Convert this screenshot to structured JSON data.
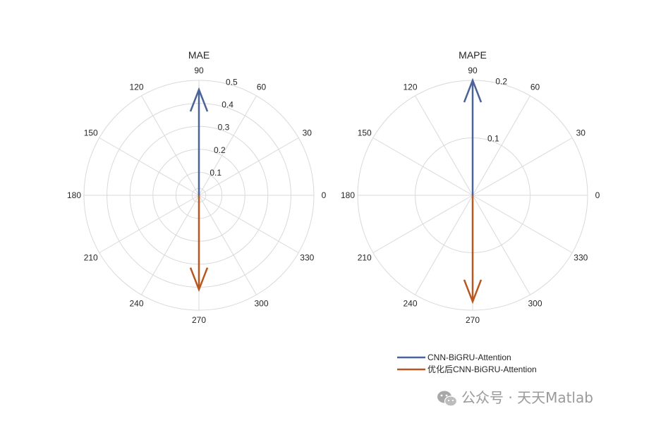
{
  "chart_data": [
    {
      "type": "polar",
      "title": "MAE",
      "angle_ticks": [
        "0",
        "30",
        "60",
        "90",
        "120",
        "150",
        "180",
        "210",
        "240",
        "270",
        "300",
        "330"
      ],
      "r_ticks": [
        "0.1",
        "0.2",
        "0.3",
        "0.4",
        "0.5"
      ],
      "rlim": [
        0,
        0.5
      ],
      "grid": true,
      "series": [
        {
          "name": "CNN-BiGRU-Attention",
          "angle_deg": 90,
          "r": 0.46,
          "color": "#4a6399"
        },
        {
          "name": "优化后CNN-BiGRU-Attention",
          "angle_deg": 270,
          "r": 0.41,
          "color": "#b8571f"
        }
      ]
    },
    {
      "type": "polar",
      "title": "MAPE",
      "angle_ticks": [
        "0",
        "30",
        "60",
        "90",
        "120",
        "150",
        "180",
        "210",
        "240",
        "270",
        "300",
        "330"
      ],
      "r_ticks": [
        "0.1",
        "0.2"
      ],
      "rlim": [
        0,
        0.2
      ],
      "grid": true,
      "series": [
        {
          "name": "CNN-BiGRU-Attention",
          "angle_deg": 90,
          "r": 0.2,
          "color": "#4a6399"
        },
        {
          "name": "优化后CNN-BiGRU-Attention",
          "angle_deg": 270,
          "r": 0.185,
          "color": "#b8571f"
        }
      ]
    }
  ],
  "legend": {
    "items": [
      {
        "label": "CNN-BiGRU-Attention",
        "color": "#4a6399"
      },
      {
        "label": "优化后CNN-BiGRU-Attention",
        "color": "#b8571f"
      }
    ]
  },
  "watermark": {
    "text": "公众号 · 天天Matlab",
    "icon": "wechat-icon"
  }
}
